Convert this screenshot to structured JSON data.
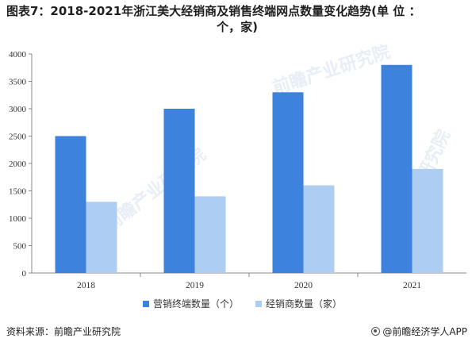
{
  "title_line1": "图表7：2018-2021年浙江美大经销商及销售终端网点数量变化趋势(单 位 ：",
  "title_line2": "个，家)",
  "source": "资料来源：前瞻产业研究院",
  "credit": "@前瞻经济学人APP",
  "watermark": "前瞻产业研究院",
  "colors": {
    "series1": "#3d82dc",
    "series2": "#aecdf3",
    "axis": "#888888"
  },
  "chart_data": {
    "type": "bar",
    "categories": [
      "2018",
      "2019",
      "2020",
      "2021"
    ],
    "series": [
      {
        "name": "营销终端数量（个）",
        "values": [
          2500,
          3000,
          3300,
          3800
        ]
      },
      {
        "name": "经销商数量（家）",
        "values": [
          1300,
          1400,
          1600,
          1900
        ]
      }
    ],
    "ylim": [
      0,
      4000
    ],
    "yticks": [
      0,
      500,
      1000,
      1500,
      2000,
      2500,
      3000,
      3500,
      4000
    ],
    "grid": false,
    "legend_position": "bottom"
  }
}
